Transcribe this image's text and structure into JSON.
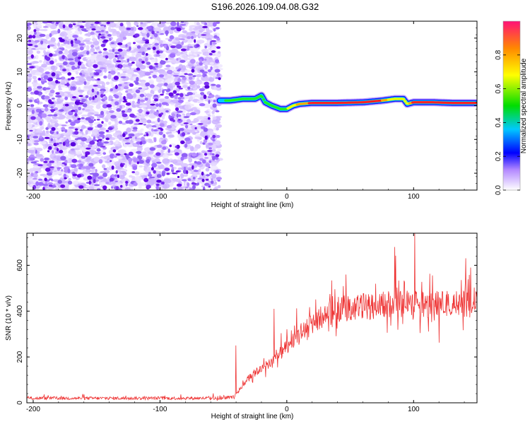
{
  "title": "S196.2026.109.04.08.G32",
  "chart_data": [
    {
      "type": "heatmap",
      "name": "spectrogram",
      "xlabel": "Height of straight line (km)",
      "ylabel": "Frequency (Hz)",
      "xlim": [
        -205,
        150
      ],
      "ylim": [
        -25,
        25
      ],
      "xticks": [
        -200,
        -100,
        0,
        100
      ],
      "xtick_labels": [
        "-200",
        "-100",
        "0",
        "100"
      ],
      "yticks": [
        20,
        10,
        0,
        -10,
        -20
      ],
      "ytick_labels": [
        "20",
        "10",
        "0",
        "-10",
        "-20"
      ],
      "noise_region": {
        "x_range": [
          -205,
          -53
        ],
        "freq_range": [
          -25,
          25
        ],
        "amplitude_range": [
          0.0,
          0.25
        ]
      },
      "tone_track": {
        "x": [
          -53,
          -45,
          -35,
          -25,
          -20,
          -17,
          -12,
          -5,
          0,
          5,
          10,
          20,
          40,
          60,
          75,
          85,
          92,
          95,
          100,
          115,
          130,
          150
        ],
        "freq": [
          1.5,
          1.5,
          2.0,
          2.0,
          3.0,
          1.0,
          0.0,
          -1.0,
          -1.0,
          0.0,
          0.5,
          0.8,
          0.8,
          1.0,
          1.5,
          2.0,
          2.0,
          0.5,
          1.0,
          1.0,
          0.8,
          0.8
        ],
        "amplitude": [
          0.4,
          0.5,
          0.5,
          0.55,
          0.5,
          0.5,
          0.5,
          0.5,
          0.6,
          0.7,
          0.8,
          0.95,
          0.95,
          0.95,
          0.9,
          0.6,
          0.65,
          0.7,
          0.95,
          0.95,
          0.95,
          0.95
        ]
      },
      "colorbar": {
        "label": "Normalized spectral amplitude",
        "range": [
          0.0,
          1.0
        ],
        "ticks": [
          0.0,
          0.2,
          0.4,
          0.6,
          0.8
        ],
        "tick_labels": [
          "0.0",
          "0.2",
          "0.4",
          "0.6",
          "0.8"
        ]
      }
    },
    {
      "type": "line",
      "name": "snr",
      "xlabel": "Height of straight line (km)",
      "ylabel": "SNR (10 * v/v)",
      "xlim": [
        -205,
        150
      ],
      "ylim": [
        0,
        740
      ],
      "xticks": [
        -200,
        -100,
        0,
        100
      ],
      "xtick_labels": [
        "-200",
        "-100",
        "0",
        "100"
      ],
      "yticks": [
        0,
        200,
        400,
        600
      ],
      "ytick_labels": [
        "0",
        "200",
        "400",
        "600"
      ],
      "color": "#ee3333",
      "trend": {
        "x": [
          -205,
          -60,
          -42,
          -30,
          -20,
          -10,
          0,
          10,
          20,
          30,
          40,
          60,
          80,
          100,
          120,
          150
        ],
        "y": [
          20,
          20,
          25,
          110,
          150,
          190,
          240,
          300,
          350,
          380,
          410,
          420,
          430,
          430,
          430,
          430
        ]
      },
      "peaks": [
        {
          "x": -40,
          "y": 250
        },
        {
          "x": -10,
          "y": 410
        },
        {
          "x": 85,
          "y": 680
        },
        {
          "x": 101,
          "y": 740
        },
        {
          "x": 145,
          "y": 590
        }
      ]
    }
  ]
}
